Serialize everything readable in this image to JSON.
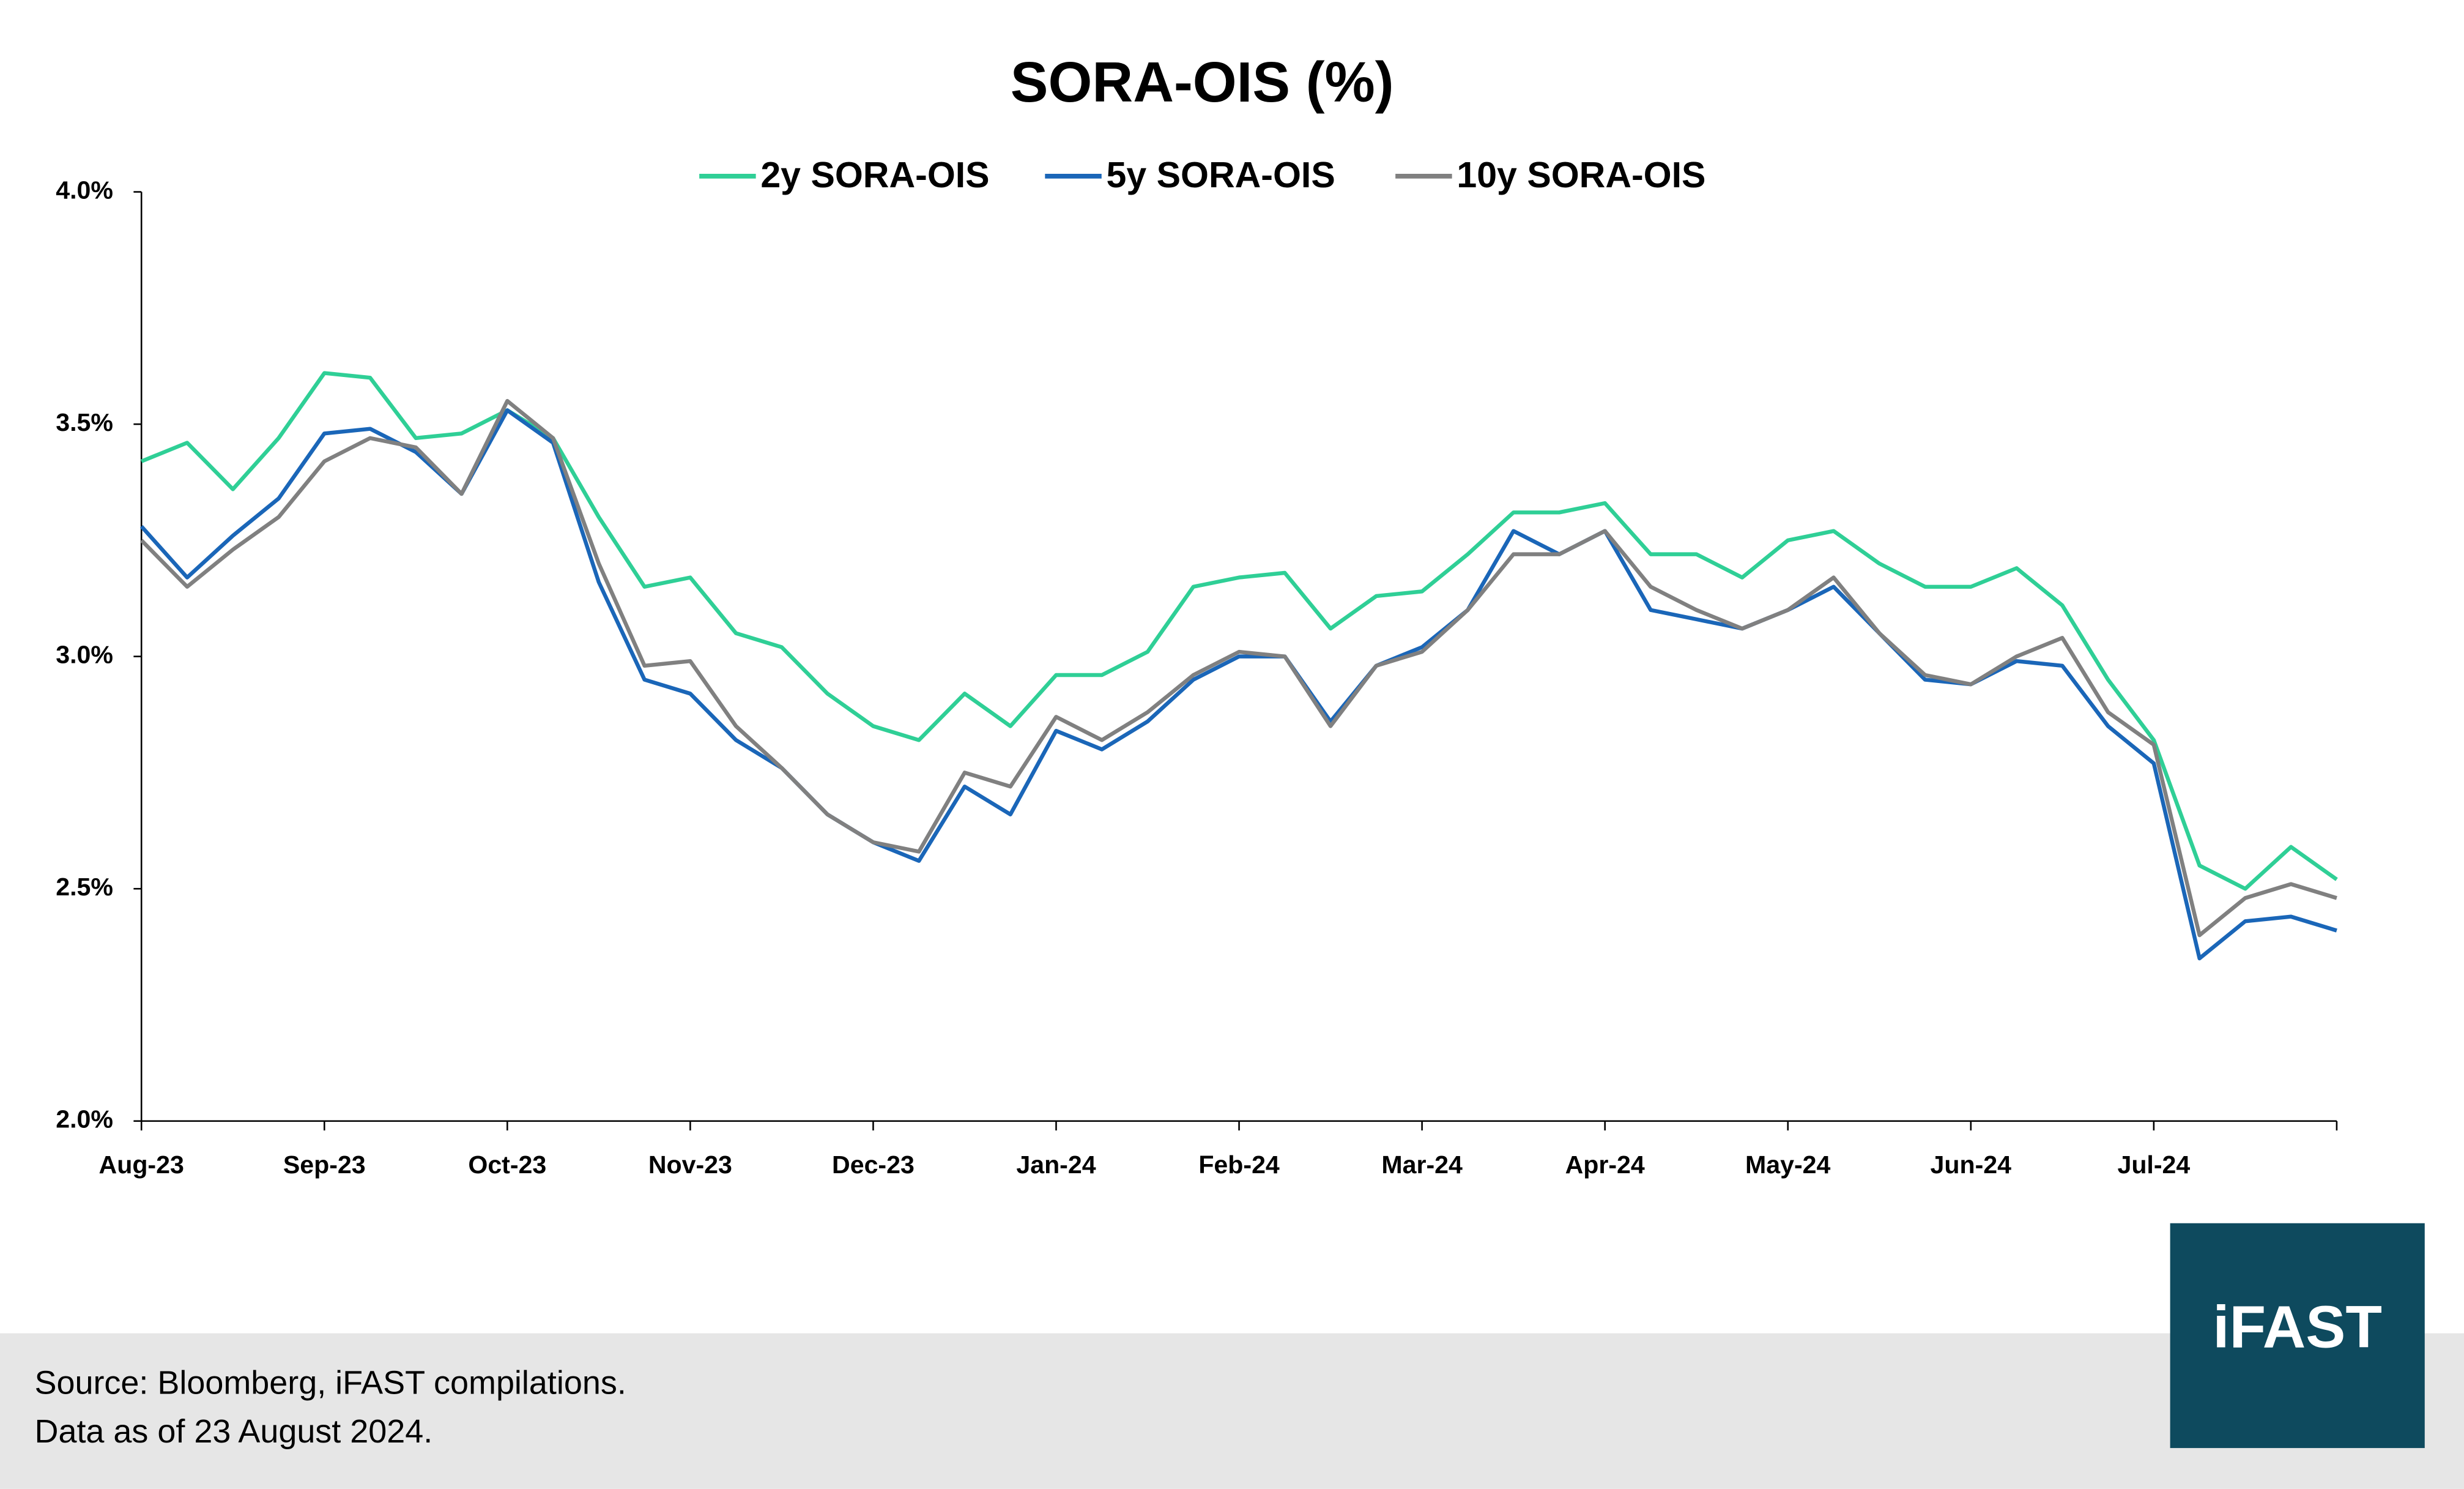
{
  "chart_data": {
    "type": "line",
    "title": "SORA-OIS (%)",
    "categories": [
      "Aug-23",
      null,
      null,
      null,
      "Sep-23",
      null,
      null,
      null,
      "Oct-23",
      null,
      null,
      null,
      "Nov-23",
      null,
      null,
      null,
      "Dec-23",
      null,
      null,
      null,
      "Jan-24",
      null,
      null,
      null,
      "Feb-24",
      null,
      null,
      null,
      "Mar-24",
      null,
      null,
      null,
      "Apr-24",
      null,
      null,
      null,
      "May-24",
      null,
      null,
      null,
      "Jun-24",
      null,
      null,
      null,
      "Jul-24",
      null,
      null,
      null,
      null
    ],
    "series": [
      {
        "name": "2y SORA-OIS",
        "color": "#2fcf96",
        "values": [
          3.42,
          3.46,
          3.36,
          3.47,
          3.61,
          3.6,
          3.47,
          3.48,
          3.53,
          3.47,
          3.3,
          3.15,
          3.17,
          3.05,
          3.02,
          2.92,
          2.85,
          2.82,
          2.92,
          2.85,
          2.96,
          2.96,
          3.01,
          3.15,
          3.17,
          3.18,
          3.06,
          3.13,
          3.14,
          3.22,
          3.31,
          3.31,
          3.33,
          3.22,
          3.22,
          3.17,
          3.25,
          3.27,
          3.2,
          3.15,
          3.15,
          3.19,
          3.11,
          2.95,
          2.82,
          2.55,
          2.5,
          2.59,
          2.52
        ]
      },
      {
        "name": "5y SORA-OIS",
        "color": "#1a66b8",
        "values": [
          3.28,
          3.17,
          3.26,
          3.34,
          3.48,
          3.49,
          3.44,
          3.35,
          3.53,
          3.46,
          3.16,
          2.95,
          2.92,
          2.82,
          2.76,
          2.66,
          2.6,
          2.56,
          2.72,
          2.66,
          2.84,
          2.8,
          2.86,
          2.95,
          3.0,
          3.0,
          2.86,
          2.98,
          3.02,
          3.1,
          3.27,
          3.22,
          3.27,
          3.1,
          3.08,
          3.06,
          3.1,
          3.15,
          3.05,
          2.95,
          2.94,
          2.99,
          2.98,
          2.85,
          2.77,
          2.35,
          2.43,
          2.44,
          2.41
        ]
      },
      {
        "name": "10y SORA-OIS",
        "color": "#808080",
        "values": [
          3.25,
          3.15,
          3.23,
          3.3,
          3.42,
          3.47,
          3.45,
          3.35,
          3.55,
          3.47,
          3.2,
          2.98,
          2.99,
          2.85,
          2.76,
          2.66,
          2.6,
          2.58,
          2.75,
          2.72,
          2.87,
          2.82,
          2.88,
          2.96,
          3.01,
          3.0,
          2.85,
          2.98,
          3.01,
          3.1,
          3.22,
          3.22,
          3.27,
          3.15,
          3.1,
          3.06,
          3.1,
          3.17,
          3.05,
          2.96,
          2.94,
          3.0,
          3.04,
          2.88,
          2.81,
          2.4,
          2.48,
          2.51,
          2.48
        ]
      }
    ],
    "ylim": [
      2,
      4
    ],
    "yticks": [
      {
        "value": 2,
        "label": "2.0%"
      },
      {
        "value": 2.5,
        "label": "2.5%"
      },
      {
        "value": 3,
        "label": "3.0%"
      },
      {
        "value": 3.5,
        "label": "3.5%"
      },
      {
        "value": 4,
        "label": "4.0%"
      }
    ],
    "grid": false,
    "legend": "top"
  },
  "footer": {
    "source": "Source: Bloomberg, iFAST compilations.",
    "note": "Data as of 23 August 2024.",
    "logo": "iFAST"
  }
}
